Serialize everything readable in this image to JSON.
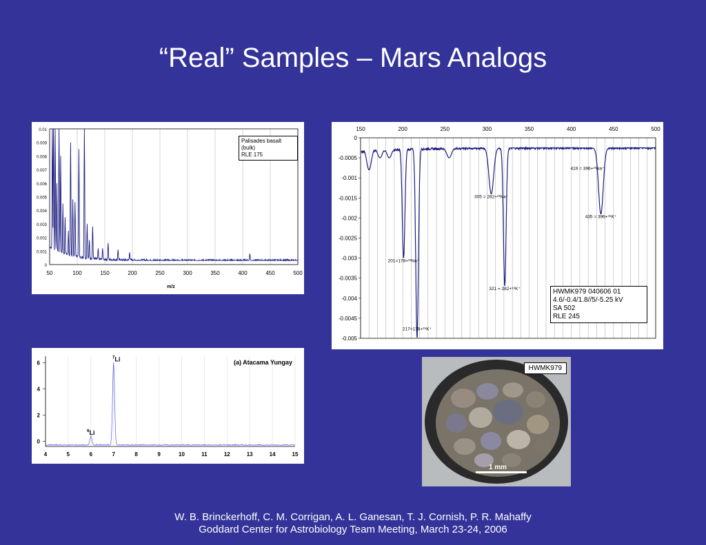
{
  "slide": {
    "title": "“Real” Samples – Mars Analogs",
    "footer_line1": "W. B. Brinckerhoff, C. M. Corrigan, A. L. Ganesan, T. J. Cornish, P. R. Mahaffy",
    "footer_line2": "Goddard Center for Astrobiology Team Meeting, March 23-24, 2006",
    "background_color": "#333399"
  },
  "photo": {
    "label": "HWMK979",
    "scale_label": "1 mm"
  },
  "chart_data": [
    {
      "id": "palisades",
      "type": "line",
      "legend": [
        "Palisades basalt (bulk)",
        "RLE 175"
      ],
      "xlabel": "m/z",
      "xlim": [
        50,
        500
      ],
      "ylim": [
        0,
        0.01
      ],
      "xticks": [
        "50",
        "100",
        "150",
        "200",
        "250",
        "300",
        "350",
        "400",
        "450",
        "500"
      ],
      "yticks": [
        "0",
        "0.001",
        "0.002",
        "0.003",
        "0.004",
        "0.005",
        "0.006",
        "0.007",
        "0.008",
        "0.009",
        "0.01"
      ],
      "baseline": 0.0003,
      "peaks": [
        {
          "x": 55,
          "y": 0.01
        },
        {
          "x": 57,
          "y": 0.01
        },
        {
          "x": 60,
          "y": 0.01
        },
        {
          "x": 63,
          "y": 0.006
        },
        {
          "x": 67,
          "y": 0.01
        },
        {
          "x": 70,
          "y": 0.008
        },
        {
          "x": 74,
          "y": 0.0045
        },
        {
          "x": 78,
          "y": 0.0035
        },
        {
          "x": 84,
          "y": 0.0025
        },
        {
          "x": 88,
          "y": 0.009
        },
        {
          "x": 92,
          "y": 0.0048
        },
        {
          "x": 96,
          "y": 0.0046
        },
        {
          "x": 103,
          "y": 0.0085
        },
        {
          "x": 113,
          "y": 0.01
        },
        {
          "x": 118,
          "y": 0.003
        },
        {
          "x": 122,
          "y": 0.0018
        },
        {
          "x": 128,
          "y": 0.0028
        },
        {
          "x": 138,
          "y": 0.0012
        },
        {
          "x": 146,
          "y": 0.0012
        },
        {
          "x": 156,
          "y": 0.0016
        },
        {
          "x": 174,
          "y": 0.0011
        },
        {
          "x": 195,
          "y": 0.0009
        },
        {
          "x": 413,
          "y": 0.0008
        }
      ],
      "colors": {
        "line": "#1a1a80",
        "grid": "#bbbbbb"
      }
    },
    {
      "id": "hwmk979",
      "type": "line",
      "xlim": [
        150,
        500
      ],
      "ylim": [
        -0.005,
        0
      ],
      "xticks": [
        "150",
        "200",
        "250",
        "300",
        "350",
        "400",
        "450",
        "500"
      ],
      "yticks": [
        "0",
        "-0.0005",
        "-0.001",
        "-0.0015",
        "-0.002",
        "-0.0025",
        "-0.003",
        "-0.0035",
        "-0.004",
        "-0.0045",
        "-0.005"
      ],
      "legend": [
        "HWMK979 040606 01",
        "4.6/-0.4/1.8//5/-5.25 kV",
        "SA 502",
        "RLE 245"
      ],
      "baseline": -0.00025,
      "dips": [
        {
          "x": 160,
          "y": -0.0008
        },
        {
          "x": 173,
          "y": -0.0005
        },
        {
          "x": 184,
          "y": -0.0005
        },
        {
          "x": 201,
          "y": -0.003
        },
        {
          "x": 217,
          "y": -0.005
        },
        {
          "x": 255,
          "y": -0.0005
        },
        {
          "x": 305,
          "y": -0.0014
        },
        {
          "x": 321,
          "y": -0.0037
        },
        {
          "x": 419,
          "y": -0.0002
        },
        {
          "x": 435,
          "y": -0.0019
        }
      ],
      "annotations": [
        {
          "x": 201,
          "y": -0.0031,
          "text": "201=178+²³Na⁺"
        },
        {
          "x": 217,
          "y": -0.0048,
          "text": "217=178+³⁹K⁺"
        },
        {
          "x": 305,
          "y": -0.0015,
          "text": "305 = 282+²³Na⁺"
        },
        {
          "x": 321,
          "y": -0.0038,
          "text": "321 = 282+³⁹K⁺"
        },
        {
          "x": 419,
          "y": -0.0008,
          "text": "419 = 396+²³Na⁺"
        },
        {
          "x": 435,
          "y": -0.002,
          "text": "435 = 396+³⁹K⁺"
        }
      ],
      "colors": {
        "line": "#1a1a80",
        "grid": "#888888"
      }
    },
    {
      "id": "atacama",
      "type": "line",
      "title": "(a) Atacama Yungay",
      "xlim": [
        4,
        15
      ],
      "ylim": [
        -0.4,
        6.5
      ],
      "xticks": [
        "4",
        "5",
        "6",
        "7",
        "8",
        "9",
        "10",
        "11",
        "12",
        "13",
        "14",
        "15"
      ],
      "yticks": [
        "0",
        "2",
        "4",
        "6"
      ],
      "baseline": -0.3,
      "peaks": [
        {
          "x": 6.0,
          "y": 0.4,
          "label_prefix": "6",
          "label": "Li"
        },
        {
          "x": 7.0,
          "y": 6.0,
          "label_prefix": "7",
          "label": "Li"
        }
      ],
      "colors": {
        "line": "#5555ee",
        "grid": "#dddddd"
      }
    }
  ]
}
